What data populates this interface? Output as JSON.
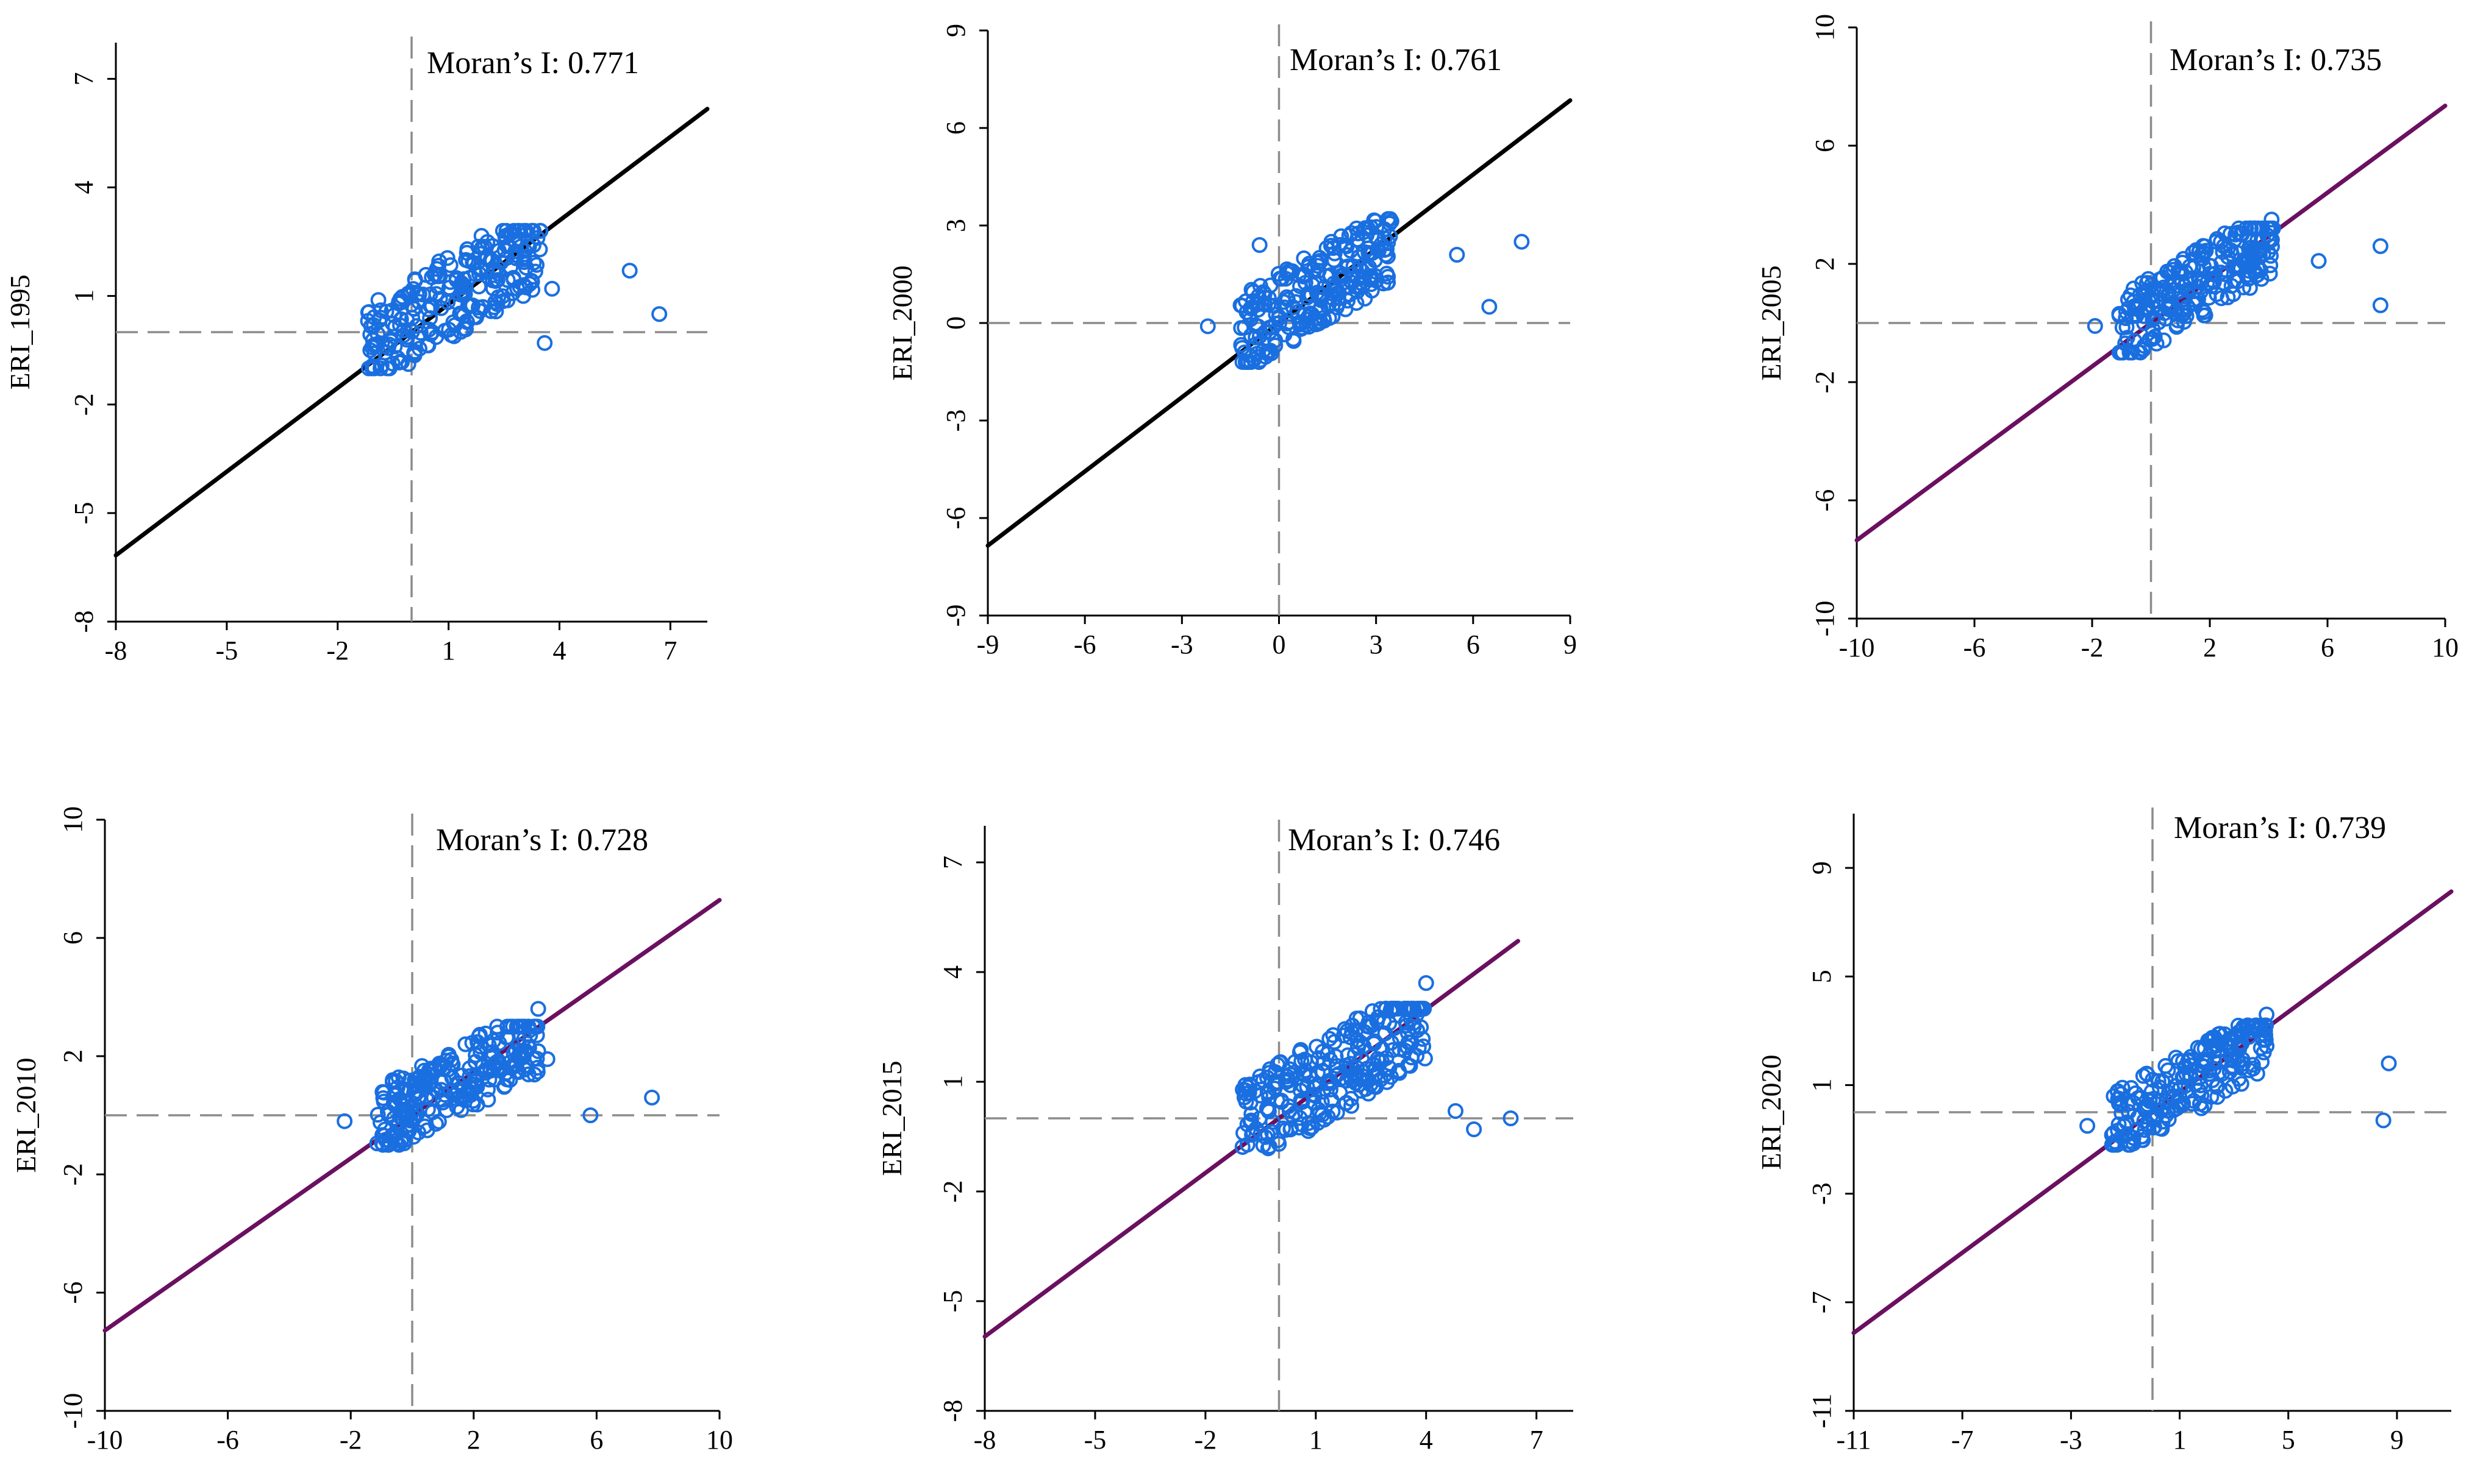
{
  "chart_data": [
    {
      "type": "scatter",
      "ylabel": "ERI_1995",
      "annotation": "Moran’s  I: 0.771",
      "xlim": [
        -8,
        8
      ],
      "ylim": [
        -8,
        8
      ],
      "xticks": [
        -8,
        -5,
        -2,
        1,
        4,
        7
      ],
      "yticks": [
        -8,
        -5,
        -2,
        1,
        4,
        7
      ],
      "regression_line": {
        "slope": 0.771,
        "color": "#000000",
        "from": -8,
        "to": 8
      },
      "highlighted_points": [
        {
          "x": 5.9,
          "y": 1.7
        },
        {
          "x": 6.7,
          "y": 0.5
        },
        {
          "x": 3.8,
          "y": 1.2
        },
        {
          "x": 3.6,
          "y": -0.3
        }
      ],
      "cluster": {
        "xmin": -1.2,
        "xmax": 3.5,
        "ymin": -1.0,
        "ymax": 2.8,
        "slope": 0.6,
        "n": 240
      }
    },
    {
      "type": "scatter",
      "ylabel": "ERI_2000",
      "annotation": "Moran’s  I: 0.761",
      "xlim": [
        -9,
        9
      ],
      "ylim": [
        -9,
        9
      ],
      "xticks": [
        -9,
        -6,
        -3,
        0,
        3,
        6,
        9
      ],
      "yticks": [
        -9,
        -6,
        -3,
        0,
        3,
        6,
        9
      ],
      "regression_line": {
        "slope": 0.761,
        "color": "#000000",
        "from": -9,
        "to": 9
      },
      "highlighted_points": [
        {
          "x": 7.5,
          "y": 2.5
        },
        {
          "x": 5.5,
          "y": 2.1
        },
        {
          "x": 6.5,
          "y": 0.5
        },
        {
          "x": -2.2,
          "y": -0.1
        },
        {
          "x": -0.6,
          "y": 2.4
        }
      ],
      "cluster": {
        "xmin": -1.2,
        "xmax": 3.5,
        "ymin": -1.2,
        "ymax": 3.2,
        "slope": 0.6,
        "n": 240
      }
    },
    {
      "type": "scatter",
      "ylabel": "ERI_2005",
      "annotation": "Moran’s  I: 0.735",
      "xlim": [
        -10,
        10
      ],
      "ylim": [
        -10,
        10
      ],
      "xticks": [
        -10,
        -6,
        -2,
        2,
        6,
        10
      ],
      "yticks": [
        -10,
        -6,
        -2,
        2,
        6,
        10
      ],
      "regression_line": {
        "slope": 0.735,
        "color": "#6b1060",
        "from": -10,
        "to": 10
      },
      "highlighted_points": [
        {
          "x": 7.8,
          "y": 2.6
        },
        {
          "x": 7.8,
          "y": 0.6
        },
        {
          "x": 5.7,
          "y": 2.1
        },
        {
          "x": -1.9,
          "y": -0.1
        },
        {
          "x": 4.1,
          "y": 3.5
        }
      ],
      "cluster": {
        "xmin": -1.2,
        "xmax": 4.2,
        "ymin": -1.0,
        "ymax": 3.2,
        "slope": 0.6,
        "n": 240
      }
    },
    {
      "type": "scatter",
      "ylabel": "ERI_2010",
      "annotation": "Moran’s  I: 0.728",
      "xlim": [
        -10,
        10
      ],
      "ylim": [
        -10,
        10
      ],
      "xticks": [
        -10,
        -6,
        -2,
        2,
        6,
        10
      ],
      "yticks": [
        -10,
        -6,
        -2,
        2,
        6,
        10
      ],
      "regression_line": {
        "slope": 0.728,
        "color": "#6b1060",
        "from": -10,
        "to": 10
      },
      "highlighted_points": [
        {
          "x": 7.8,
          "y": 0.6
        },
        {
          "x": 5.8,
          "y": 0.0
        },
        {
          "x": -2.2,
          "y": -0.2
        },
        {
          "x": 4.4,
          "y": 1.9
        },
        {
          "x": 4.1,
          "y": 3.6
        }
      ],
      "cluster": {
        "xmin": -1.2,
        "xmax": 4.2,
        "ymin": -1.0,
        "ymax": 3.0,
        "slope": 0.55,
        "n": 240
      }
    },
    {
      "type": "scatter",
      "ylabel": "ERI_2015",
      "annotation": "Moran’s  I: 0.746",
      "xlim": [
        -8,
        8
      ],
      "ylim": [
        -8,
        8
      ],
      "xticks": [
        -8,
        -5,
        -2,
        1,
        4,
        7
      ],
      "yticks": [
        -8,
        -5,
        -2,
        1,
        4,
        7
      ],
      "regression_line": {
        "slope": 0.746,
        "color": "#6b1060",
        "from": -8,
        "to": 6.5
      },
      "highlighted_points": [
        {
          "x": 6.3,
          "y": 0.0
        },
        {
          "x": 5.3,
          "y": -0.3
        },
        {
          "x": 4.8,
          "y": 0.2
        },
        {
          "x": 4.0,
          "y": 3.7
        }
      ],
      "cluster": {
        "xmin": -1.0,
        "xmax": 4.0,
        "ymin": -1.0,
        "ymax": 3.0,
        "slope": 0.6,
        "n": 260
      }
    },
    {
      "type": "scatter",
      "ylabel": "ERI_2020",
      "annotation": "Moran’s  I: 0.739",
      "xlim": [
        -11,
        11
      ],
      "ylim": [
        -11,
        11
      ],
      "xticks": [
        -11,
        -7,
        -3,
        1,
        5,
        9
      ],
      "yticks": [
        -11,
        -7,
        -3,
        1,
        5,
        9
      ],
      "regression_line": {
        "slope": 0.739,
        "color": "#6b1060",
        "from": -11,
        "to": 11
      },
      "highlighted_points": [
        {
          "x": 8.7,
          "y": 1.8
        },
        {
          "x": 8.5,
          "y": -0.3
        },
        {
          "x": -2.4,
          "y": -0.5
        },
        {
          "x": 4.2,
          "y": 3.6
        }
      ],
      "cluster": {
        "xmin": -1.5,
        "xmax": 4.2,
        "ymin": -1.2,
        "ymax": 3.2,
        "slope": 0.55,
        "n": 220
      }
    }
  ],
  "colors": {
    "point": "#1a6fe0",
    "reference_line": "#8c8c8c",
    "axis": "#000000"
  }
}
